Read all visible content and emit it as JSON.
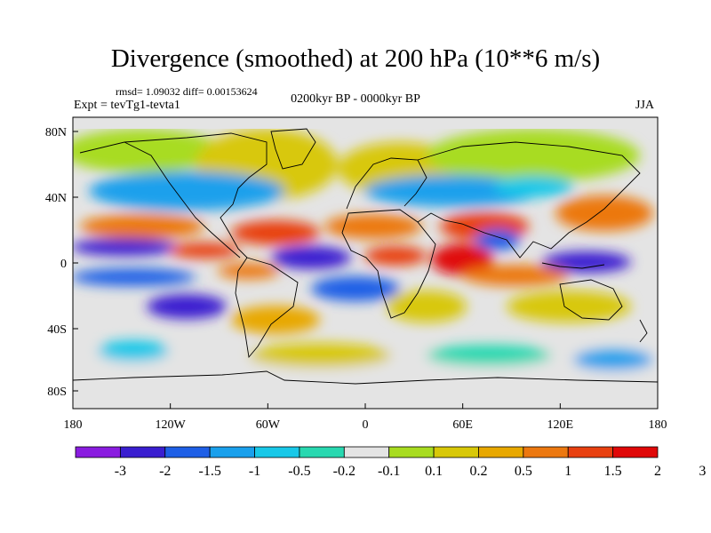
{
  "title": "Divergence (smoothed) at 200 hPa (10**6 m/s)",
  "stats": "rmsd= 1.09032 diff= 0.00153624",
  "experiment": "Expt = tevTg1-tevta1",
  "period": "0200kyr BP - 0000kyr BP",
  "season": "JJA",
  "map": {
    "lat_ticks": [
      "80N",
      "40N",
      "0",
      "40S",
      "80S"
    ],
    "lon_ticks": [
      "180",
      "120W",
      "60W",
      "0",
      "60E",
      "120E",
      "180"
    ],
    "ocean_color": "#e4e4e4",
    "coastline_color": "#000000"
  },
  "colorbar": {
    "colors": [
      "#8a1ce0",
      "#3a1ed0",
      "#1e5fe6",
      "#1aa0ec",
      "#18c8e8",
      "#28d8b0",
      "#e4e4e4",
      "#a8dc20",
      "#d8c808",
      "#e8a800",
      "#ec7810",
      "#e84010",
      "#e00808"
    ],
    "labels": [
      "-3",
      "-2",
      "-1.5",
      "-1",
      "-0.5",
      "-0.2",
      "-0.1",
      "0.1",
      "0.2",
      "0.5",
      "1",
      "1.5",
      "2",
      "3"
    ]
  }
}
